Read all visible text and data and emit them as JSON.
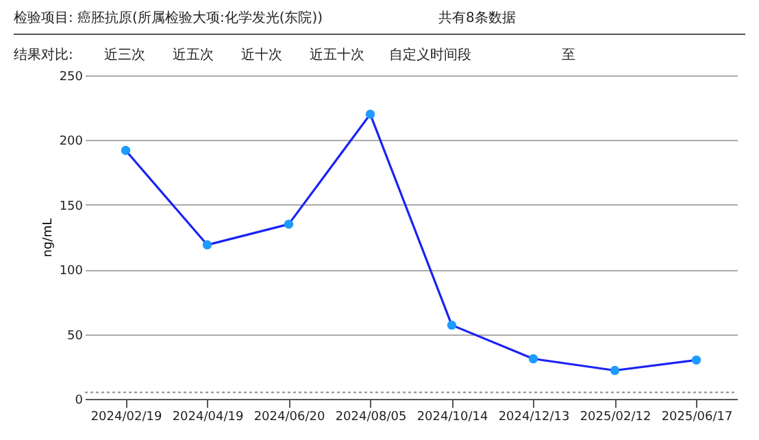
{
  "chart_data": {
    "type": "line",
    "title": "检验项目: 癌胚抗原(所属检验大项:化学发光(东院))",
    "subtitle": "共有8条数据",
    "annotations": [
      "结果对比:",
      "近三次",
      "近五次",
      "近十次",
      "近五十次",
      "自定义时间段",
      "至"
    ],
    "categories": [
      "2024/02/19",
      "2024/04/19",
      "2024/06/20",
      "2024/08/05",
      "2024/10/14",
      "2024/12/13",
      "2025/02/12",
      "2025/06/17"
    ],
    "series": [
      {
        "color": "#1a22f5",
        "colors": [
          "#1e9bff",
          "#1e9bff",
          "#1e9bff",
          "#1e9bff",
          "#1e9bff",
          "#1e9bff",
          "#1e9bff",
          "#1e9bff"
        ],
        "values": [
          192,
          119,
          135,
          220,
          57,
          31,
          22,
          30
        ]
      }
    ],
    "ylabel": "ng/mL",
    "ylim": [
      0,
      250
    ],
    "yticks": [
      0,
      50,
      100,
      150,
      200,
      250
    ],
    "ref_lines": [
      {
        "axis": "y",
        "value": 5,
        "color": "#888888",
        "line_style": "dotted"
      }
    ],
    "grid": "y",
    "marker": "circle",
    "line_style": "solid"
  }
}
